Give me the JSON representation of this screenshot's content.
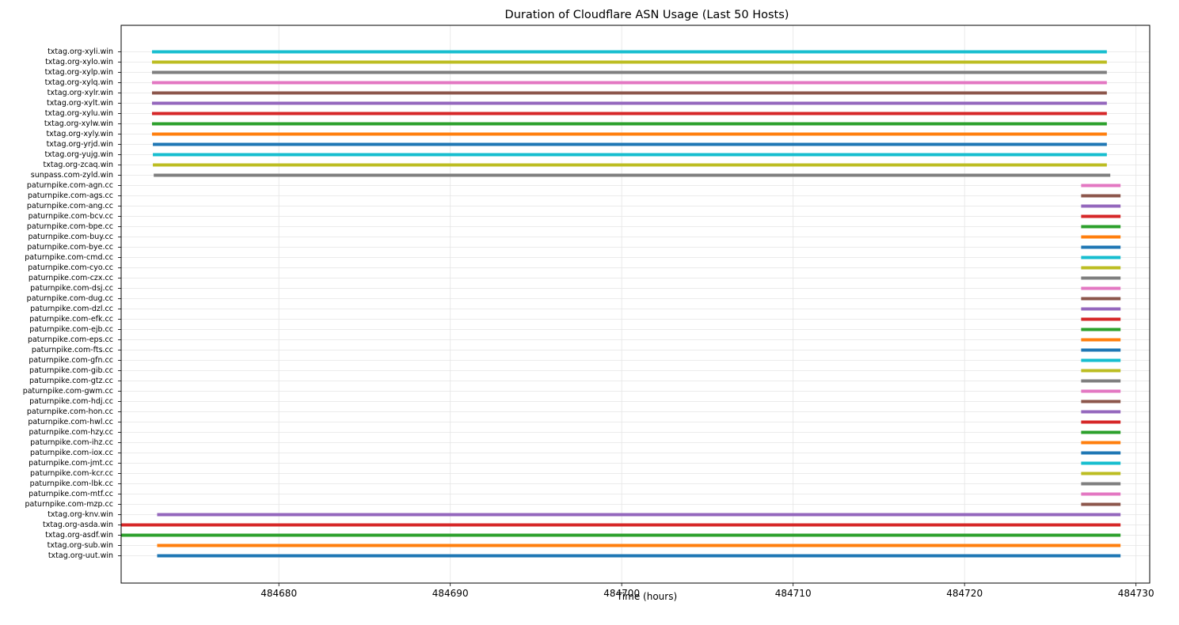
{
  "chart_data": {
    "type": "bar",
    "orientation": "horizontal-range",
    "title": "Duration of Cloudflare ASN Usage (Last 50 Hosts)",
    "xlabel": "Time (hours)",
    "ylabel": "",
    "xlim": [
      484670.8,
      484730.8
    ],
    "xticks": [
      484680,
      484690,
      484700,
      484710,
      484720,
      484730
    ],
    "xtick_labels": [
      "484680",
      "484690",
      "484700",
      "484710",
      "484720",
      "484730"
    ],
    "grid": true,
    "series": [
      {
        "name": "txtag.org-xyli.win",
        "start": 484672.6,
        "end": 484728.3,
        "color": "#17becf"
      },
      {
        "name": "txtag.org-xylo.win",
        "start": 484672.6,
        "end": 484728.3,
        "color": "#bcbd22"
      },
      {
        "name": "txtag.org-xylp.win",
        "start": 484672.6,
        "end": 484728.3,
        "color": "#7f7f7f"
      },
      {
        "name": "txtag.org-xylq.win",
        "start": 484672.6,
        "end": 484728.3,
        "color": "#e377c2"
      },
      {
        "name": "txtag.org-xylr.win",
        "start": 484672.6,
        "end": 484728.3,
        "color": "#8c564b"
      },
      {
        "name": "txtag.org-xylt.win",
        "start": 484672.6,
        "end": 484728.3,
        "color": "#9467bd"
      },
      {
        "name": "txtag.org-xylu.win",
        "start": 484672.6,
        "end": 484728.3,
        "color": "#d62728"
      },
      {
        "name": "txtag.org-xylw.win",
        "start": 484672.6,
        "end": 484728.3,
        "color": "#2ca02c"
      },
      {
        "name": "txtag.org-xyly.win",
        "start": 484672.6,
        "end": 484728.3,
        "color": "#ff7f0e"
      },
      {
        "name": "txtag.org-yrjd.win",
        "start": 484672.65,
        "end": 484728.3,
        "color": "#1f77b4"
      },
      {
        "name": "txtag.org-yujg.win",
        "start": 484672.65,
        "end": 484728.3,
        "color": "#17becf"
      },
      {
        "name": "txtag.org-zcaq.win",
        "start": 484672.65,
        "end": 484728.3,
        "color": "#bcbd22"
      },
      {
        "name": "sunpass.com-zyld.win",
        "start": 484672.7,
        "end": 484728.5,
        "color": "#7f7f7f"
      },
      {
        "name": "paturnpike.com-agn.cc",
        "start": 484726.8,
        "end": 484729.1,
        "color": "#e377c2"
      },
      {
        "name": "paturnpike.com-ags.cc",
        "start": 484726.8,
        "end": 484729.1,
        "color": "#8c564b"
      },
      {
        "name": "paturnpike.com-ang.cc",
        "start": 484726.8,
        "end": 484729.1,
        "color": "#9467bd"
      },
      {
        "name": "paturnpike.com-bcv.cc",
        "start": 484726.8,
        "end": 484729.1,
        "color": "#d62728"
      },
      {
        "name": "paturnpike.com-bpe.cc",
        "start": 484726.8,
        "end": 484729.1,
        "color": "#2ca02c"
      },
      {
        "name": "paturnpike.com-buy.cc",
        "start": 484726.8,
        "end": 484729.1,
        "color": "#ff7f0e"
      },
      {
        "name": "paturnpike.com-bye.cc",
        "start": 484726.8,
        "end": 484729.1,
        "color": "#1f77b4"
      },
      {
        "name": "paturnpike.com-cmd.cc",
        "start": 484726.8,
        "end": 484729.1,
        "color": "#17becf"
      },
      {
        "name": "paturnpike.com-cyo.cc",
        "start": 484726.8,
        "end": 484729.1,
        "color": "#bcbd22"
      },
      {
        "name": "paturnpike.com-czx.cc",
        "start": 484726.8,
        "end": 484729.1,
        "color": "#7f7f7f"
      },
      {
        "name": "paturnpike.com-dsj.cc",
        "start": 484726.8,
        "end": 484729.1,
        "color": "#e377c2"
      },
      {
        "name": "paturnpike.com-dug.cc",
        "start": 484726.8,
        "end": 484729.1,
        "color": "#8c564b"
      },
      {
        "name": "paturnpike.com-dzl.cc",
        "start": 484726.8,
        "end": 484729.1,
        "color": "#9467bd"
      },
      {
        "name": "paturnpike.com-efk.cc",
        "start": 484726.8,
        "end": 484729.1,
        "color": "#d62728"
      },
      {
        "name": "paturnpike.com-ejb.cc",
        "start": 484726.8,
        "end": 484729.1,
        "color": "#2ca02c"
      },
      {
        "name": "paturnpike.com-eps.cc",
        "start": 484726.8,
        "end": 484729.1,
        "color": "#ff7f0e"
      },
      {
        "name": "paturnpike.com-fts.cc",
        "start": 484726.8,
        "end": 484729.1,
        "color": "#1f77b4"
      },
      {
        "name": "paturnpike.com-gfn.cc",
        "start": 484726.8,
        "end": 484729.1,
        "color": "#17becf"
      },
      {
        "name": "paturnpike.com-gib.cc",
        "start": 484726.8,
        "end": 484729.1,
        "color": "#bcbd22"
      },
      {
        "name": "paturnpike.com-gtz.cc",
        "start": 484726.8,
        "end": 484729.1,
        "color": "#7f7f7f"
      },
      {
        "name": "paturnpike.com-gwm.cc",
        "start": 484726.8,
        "end": 484729.1,
        "color": "#e377c2"
      },
      {
        "name": "paturnpike.com-hdj.cc",
        "start": 484726.8,
        "end": 484729.1,
        "color": "#8c564b"
      },
      {
        "name": "paturnpike.com-hon.cc",
        "start": 484726.8,
        "end": 484729.1,
        "color": "#9467bd"
      },
      {
        "name": "paturnpike.com-hwl.cc",
        "start": 484726.8,
        "end": 484729.1,
        "color": "#d62728"
      },
      {
        "name": "paturnpike.com-hzy.cc",
        "start": 484726.8,
        "end": 484729.1,
        "color": "#2ca02c"
      },
      {
        "name": "paturnpike.com-ihz.cc",
        "start": 484726.8,
        "end": 484729.1,
        "color": "#ff7f0e"
      },
      {
        "name": "paturnpike.com-iox.cc",
        "start": 484726.8,
        "end": 484729.1,
        "color": "#1f77b4"
      },
      {
        "name": "paturnpike.com-jmt.cc",
        "start": 484726.8,
        "end": 484729.1,
        "color": "#17becf"
      },
      {
        "name": "paturnpike.com-kcr.cc",
        "start": 484726.8,
        "end": 484729.1,
        "color": "#bcbd22"
      },
      {
        "name": "paturnpike.com-lbk.cc",
        "start": 484726.8,
        "end": 484729.1,
        "color": "#7f7f7f"
      },
      {
        "name": "paturnpike.com-mtf.cc",
        "start": 484726.8,
        "end": 484729.1,
        "color": "#e377c2"
      },
      {
        "name": "paturnpike.com-mzp.cc",
        "start": 484726.8,
        "end": 484729.1,
        "color": "#8c564b"
      },
      {
        "name": "txtag.org-knv.win",
        "start": 484672.9,
        "end": 484729.1,
        "color": "#9467bd"
      },
      {
        "name": "txtag.org-asda.win",
        "start": 484670.8,
        "end": 484729.1,
        "color": "#d62728"
      },
      {
        "name": "txtag.org-asdf.win",
        "start": 484670.8,
        "end": 484729.1,
        "color": "#2ca02c"
      },
      {
        "name": "txtag.org-sub.win",
        "start": 484672.9,
        "end": 484729.1,
        "color": "#ff7f0e"
      },
      {
        "name": "txtag.org-uut.win",
        "start": 484672.9,
        "end": 484729.1,
        "color": "#1f77b4"
      }
    ]
  }
}
